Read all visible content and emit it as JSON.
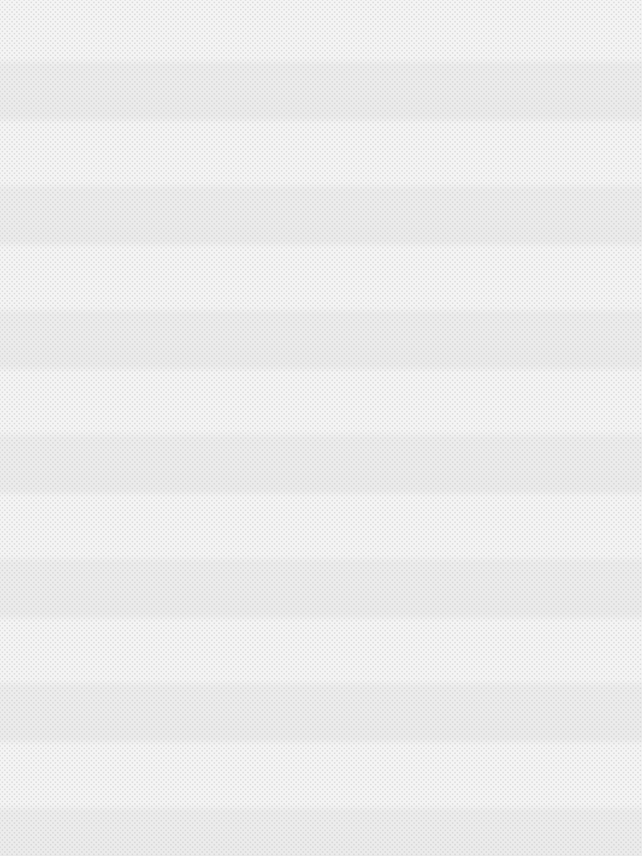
{
  "background": {
    "pattern": "horizontal-stripes-with-dot-texture",
    "colors": {
      "light_band": "#f4f4f4",
      "dark_band": "#ebebeb",
      "dot": "#c8c8c8"
    }
  }
}
